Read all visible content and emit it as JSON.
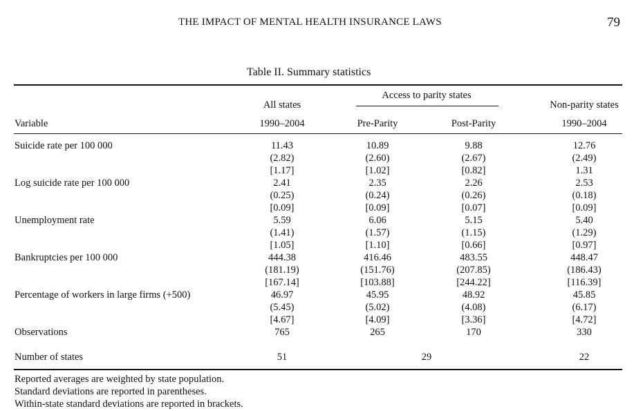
{
  "header": {
    "running_head": "THE IMPACT OF MENTAL HEALTH INSURANCE LAWS",
    "page_number": "79"
  },
  "table": {
    "caption": "Table II.  Summary statistics",
    "group_header": "Access to parity states",
    "column_headers": {
      "variable": "Variable",
      "all_states_top": "All states",
      "all_states_bottom": "1990–2004",
      "pre_parity": "Pre-Parity",
      "post_parity": "Post-Parity",
      "non_parity_top": "Non-parity states",
      "non_parity_bottom": "1990–2004"
    },
    "rows": [
      {
        "label": "Suicide rate per 100 000",
        "all": [
          "11.43",
          "(2.82)",
          "[1.17]"
        ],
        "pre": [
          "10.89",
          "(2.60)",
          "[1.02]"
        ],
        "post": [
          "9.88",
          "(2.67)",
          "[0.82]"
        ],
        "non": [
          "12.76",
          "(2.49)",
          "1.31"
        ]
      },
      {
        "label": "Log suicide rate per 100 000",
        "all": [
          "2.41",
          "(0.25)",
          "[0.09]"
        ],
        "pre": [
          "2.35",
          "(0.24)",
          "[0.09]"
        ],
        "post": [
          "2.26",
          "(0.26)",
          "[0.07]"
        ],
        "non": [
          "2.53",
          "(0.18)",
          "[0.09]"
        ]
      },
      {
        "label": "Unemployment rate",
        "all": [
          "5.59",
          "(1.41)",
          "[1.05]"
        ],
        "pre": [
          "6.06",
          "(1.57)",
          "[1.10]"
        ],
        "post": [
          "5.15",
          "(1.15)",
          "[0.66]"
        ],
        "non": [
          "5.40",
          "(1.29)",
          "[0.97]"
        ]
      },
      {
        "label": "Bankruptcies per 100 000",
        "all": [
          "444.38",
          "(181.19)",
          "[167.14]"
        ],
        "pre": [
          "416.46",
          "(151.76)",
          "[103.88]"
        ],
        "post": [
          "483.55",
          "(207.85)",
          "[244.22]"
        ],
        "non": [
          "448.47",
          "(186.43)",
          "[116.39]"
        ]
      },
      {
        "label": "Percentage of workers in large firms (+500)",
        "all": [
          "46.97",
          "(5.45)",
          "[4.67]"
        ],
        "pre": [
          "45.95",
          "(5.02)",
          "[4.09]"
        ],
        "post": [
          "48.92",
          "(4.08)",
          "[3.36]"
        ],
        "non": [
          "45.85",
          "(6.17)",
          "[4.72]"
        ]
      },
      {
        "label": "Observations",
        "all": [
          "765"
        ],
        "pre": [
          "265"
        ],
        "post": [
          "170"
        ],
        "non": [
          "330"
        ]
      }
    ],
    "number_of_states": {
      "label": "Number of states",
      "all": "51",
      "parity": "29",
      "non": "22"
    }
  },
  "notes": [
    "Reported averages are weighted by state population.",
    "Standard deviations are reported in parentheses.",
    "Within-state standard deviations are reported in brackets."
  ]
}
